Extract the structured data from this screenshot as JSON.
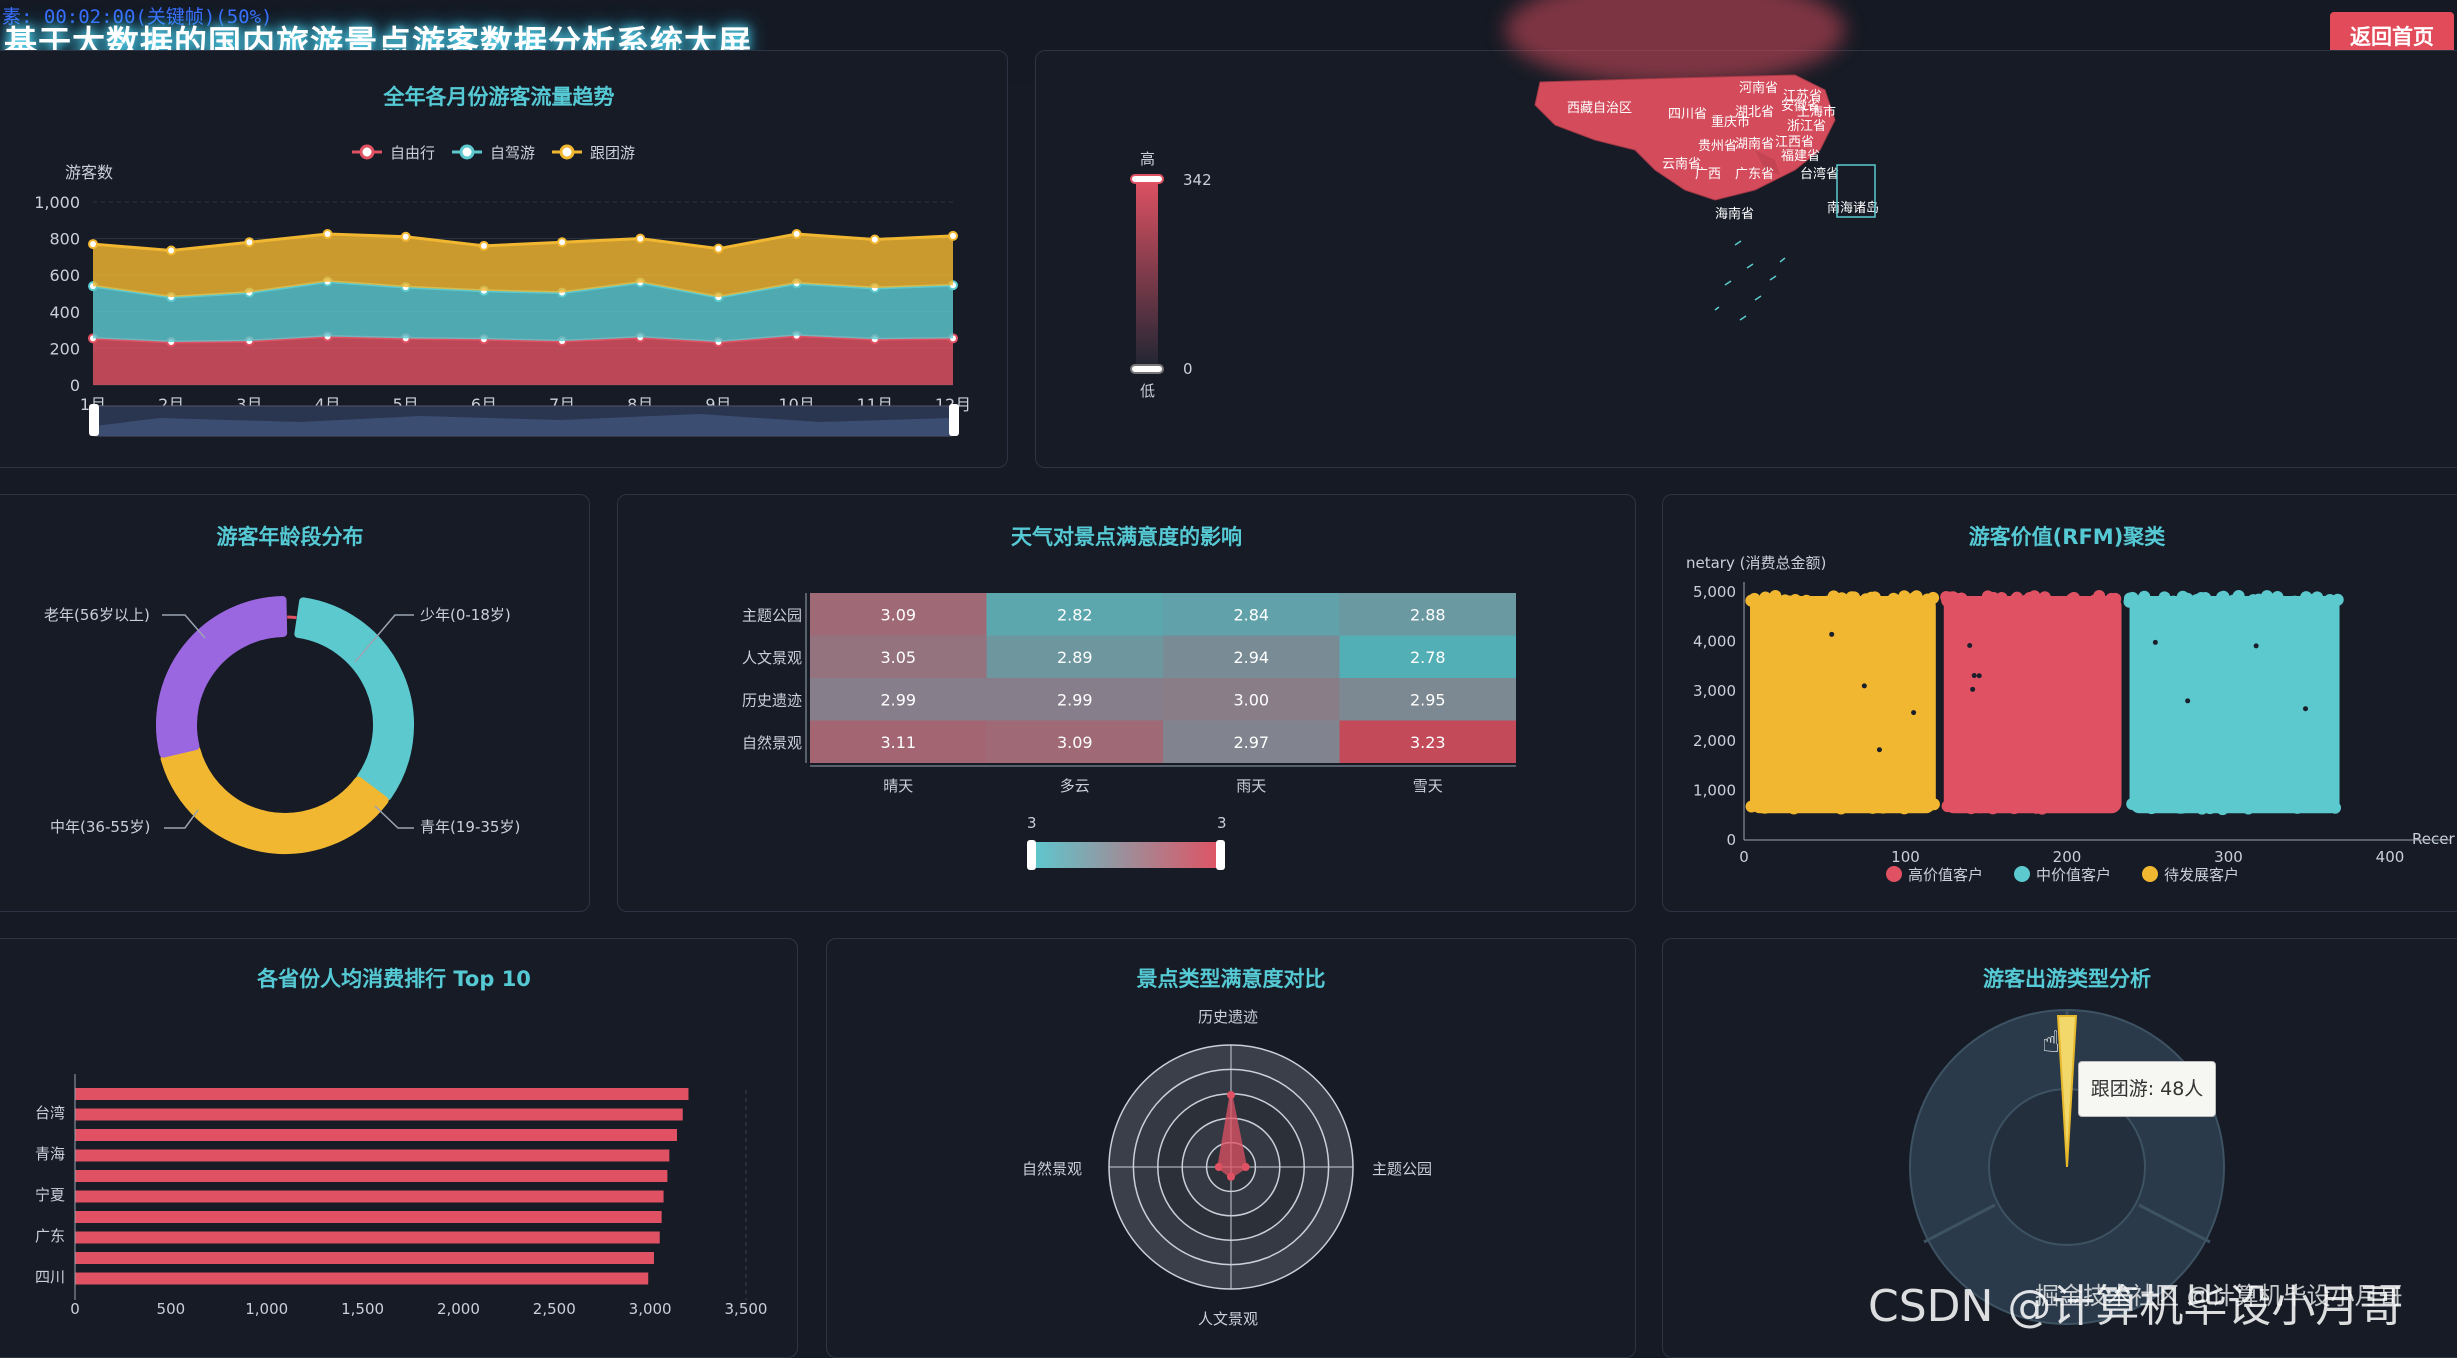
{
  "header": {
    "timecode": "素: 00:02:00(关键帧)(50%)",
    "title": "基于大数据的国内旅游景点游客数据分析系统大屏",
    "back_button": "返回首页"
  },
  "trend": {
    "title": "全年各月份游客流量趋势",
    "ylabel": "游客数",
    "legend": [
      "自由行",
      "自驾游",
      "跟团游"
    ],
    "y_ticks": [
      "0",
      "200",
      "400",
      "600",
      "800",
      "1,000"
    ],
    "months": [
      "1月",
      "2月",
      "3月",
      "4月",
      "5月",
      "6月",
      "7月",
      "8月",
      "9月",
      "10月",
      "11月",
      "12月"
    ],
    "colors": [
      "#e05263",
      "#5cc9cf",
      "#f2b731"
    ]
  },
  "map": {
    "scale_high": "高",
    "scale_low": "低",
    "scale_max": "342",
    "scale_min": "0",
    "regions": [
      "西藏自治区",
      "四川省",
      "河南省",
      "江苏省",
      "湖北省",
      "安徽省",
      "上海市",
      "重庆市",
      "浙江省",
      "贵州省",
      "江西省",
      "福建省",
      "湖南省",
      "云南省",
      "广西",
      "广东省",
      "台湾省",
      "海南省",
      "南海诸岛"
    ]
  },
  "age": {
    "title": "游客年龄段分布",
    "labels": [
      "老年(56岁以上)",
      "少年(0-18岁)",
      "中年(36-55岁)",
      "青年(19-35岁)"
    ]
  },
  "weather": {
    "title": "天气对景点满意度的影响",
    "rows": [
      "主题公园",
      "人文景观",
      "历史遗迹",
      "自然景观"
    ],
    "cols": [
      "晴天",
      "多云",
      "雨天",
      "雪天"
    ],
    "values": [
      [
        "3.09",
        "2.82",
        "2.84",
        "2.88"
      ],
      [
        "3.05",
        "2.89",
        "2.94",
        "2.78"
      ],
      [
        "2.99",
        "2.99",
        "3.00",
        "2.95"
      ],
      [
        "3.11",
        "3.09",
        "2.97",
        "3.23"
      ]
    ],
    "scale_min": "3",
    "scale_max": "3"
  },
  "rfm": {
    "title": "游客价值(RFM)聚类",
    "ylabel": "netary (消费总金额)",
    "xlabel": "Recer",
    "y_ticks": [
      "0",
      "1,000",
      "2,000",
      "3,000",
      "4,000",
      "5,000"
    ],
    "x_ticks": [
      "0",
      "100",
      "200",
      "300",
      "400"
    ],
    "legend": [
      "高价值客户",
      "中价值客户",
      "待发展客户"
    ],
    "colors": [
      "#e05263",
      "#5cc9cf",
      "#f2b731"
    ]
  },
  "province": {
    "title": "各省份人均消费排行 Top 10",
    "labels": [
      "台湾",
      "青海",
      "宁夏",
      "广东",
      "四川"
    ],
    "x_ticks": [
      "0",
      "500",
      "1,000",
      "1,500",
      "2,000",
      "2,500",
      "3,000",
      "3,500"
    ]
  },
  "radar": {
    "title": "景点类型满意度对比",
    "axes": [
      "历史遗迹",
      "主题公园",
      "人文景观",
      "自然景观"
    ]
  },
  "trip": {
    "title": "游客出游类型分析",
    "tooltip": "跟团游: 48人"
  },
  "watermark": "CSDN @计算机毕设小月哥",
  "watermark_small": "掘金技术社区 @计算机毕设小月哥",
  "chart_data": [
    {
      "type": "area",
      "title": "全年各月份游客流量趋势",
      "ylabel": "游客数",
      "categories": [
        "1月",
        "2月",
        "3月",
        "4月",
        "5月",
        "6月",
        "7月",
        "8月",
        "9月",
        "10月",
        "11月",
        "12月"
      ],
      "ylim": [
        0,
        1000
      ],
      "stacked": true,
      "series": [
        {
          "name": "自由行",
          "values": [
            255,
            235,
            240,
            265,
            255,
            250,
            240,
            260,
            235,
            270,
            250,
            255
          ]
        },
        {
          "name": "自驾游",
          "values": [
            285,
            245,
            265,
            300,
            280,
            265,
            265,
            300,
            245,
            285,
            280,
            290
          ]
        },
        {
          "name": "跟团游",
          "values": [
            230,
            255,
            275,
            260,
            275,
            245,
            275,
            240,
            265,
            270,
            265,
            270
          ]
        }
      ]
    },
    {
      "type": "pie",
      "title": "游客年龄段分布",
      "labels": [
        "少年(0-18岁)",
        "青年(19-35岁)",
        "中年(36-55岁)",
        "老年(56岁以上)"
      ],
      "values": [
        2,
        33,
        36,
        29
      ],
      "colors": [
        "#e05263",
        "#5cc9cf",
        "#f2b731",
        "#9b67e0"
      ]
    },
    {
      "type": "heatmap",
      "title": "天气对景点满意度的影响",
      "x": [
        "晴天",
        "多云",
        "雨天",
        "雪天"
      ],
      "y": [
        "主题公园",
        "人文景观",
        "历史遗迹",
        "自然景观"
      ],
      "values": [
        [
          3.09,
          2.82,
          2.84,
          2.88
        ],
        [
          3.05,
          2.89,
          2.94,
          2.78
        ],
        [
          2.99,
          2.99,
          3.0,
          2.95
        ],
        [
          3.11,
          3.09,
          2.97,
          3.23
        ]
      ]
    },
    {
      "type": "scatter",
      "title": "游客价值(RFM)聚类",
      "xlim": [
        0,
        400
      ],
      "ylim": [
        0,
        5000
      ],
      "clusters": [
        {
          "name": "待发展客户",
          "xrange": [
            0,
            120
          ],
          "yrange": [
            500,
            5000
          ]
        },
        {
          "name": "高价值客户",
          "xrange": [
            120,
            235
          ],
          "yrange": [
            500,
            5000
          ]
        },
        {
          "name": "中价值客户",
          "xrange": [
            235,
            370
          ],
          "yrange": [
            500,
            5000
          ]
        }
      ]
    },
    {
      "type": "bar",
      "orientation": "horizontal",
      "title": "各省份人均消费排行 Top 10",
      "xlim": [
        0,
        3500
      ],
      "values": [
        2990,
        3020,
        3050,
        3060,
        3070,
        3090,
        3100,
        3140,
        3170,
        3200
      ]
    },
    {
      "type": "radar",
      "title": "景点类型满意度对比",
      "axes": [
        "历史遗迹",
        "主题公园",
        "人文景观",
        "自然景观"
      ],
      "values": [
        2.95,
        0.6,
        0.4,
        0.5
      ],
      "max": 5
    },
    {
      "type": "pie",
      "title": "游客出游类型分析",
      "labels": [
        "跟团游"
      ],
      "values": [
        48
      ]
    }
  ]
}
